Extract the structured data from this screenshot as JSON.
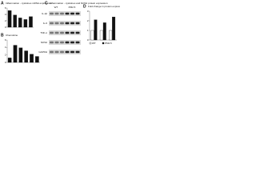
{
  "chart_data": [
    {
      "type": "bar",
      "panel": "A",
      "title": "Inflammation - cytokines mRNA expression",
      "categories": [
        null,
        null,
        null,
        null,
        null
      ],
      "values": [
        5.2,
        3.8,
        2.9,
        2.4,
        3.3
      ],
      "color": "#111111",
      "ylim": [
        0,
        6
      ],
      "yticks": [
        0,
        2,
        4,
        6
      ]
    },
    {
      "type": "bar",
      "panel": "B",
      "title": "Chemokine",
      "categories": [
        null,
        null,
        null,
        null,
        null,
        null
      ],
      "values": [
        1.2,
        4.6,
        3.9,
        3.1,
        2.2,
        1.6
      ],
      "color": "#111111",
      "ylim": [
        0,
        6
      ],
      "yticks": [
        0,
        2,
        4,
        6
      ]
    },
    {
      "type": "bar",
      "panel": "D",
      "title": "Fold change in protein expression",
      "categories": [
        null,
        null,
        null
      ],
      "series": [
        {
          "name": "WT",
          "color": "#ffffff",
          "values": [
            1,
            1,
            1
          ]
        },
        {
          "name": "PM2.5",
          "color": "#111111",
          "values": [
            2.1,
            1.8,
            2.4
          ]
        }
      ],
      "ylim": [
        0,
        3
      ],
      "yticks": [
        0,
        1,
        2,
        3
      ]
    }
  ],
  "blot": {
    "panel": "C",
    "title": "Inflammation - cytokines and NOS2 protein expression",
    "groups": [
      "WT",
      "PM2.5"
    ],
    "rows": [
      "IL-1β",
      "IL-6",
      "TNF-α",
      "NOS2",
      "GAPDH"
    ]
  }
}
